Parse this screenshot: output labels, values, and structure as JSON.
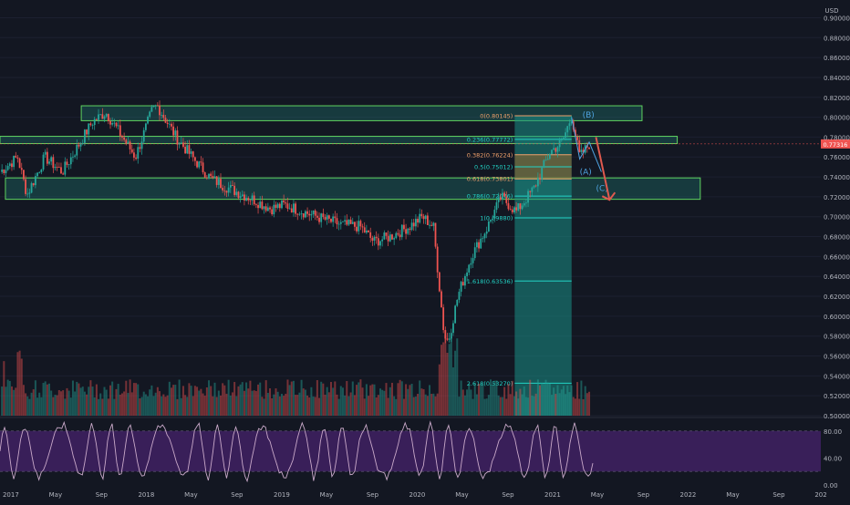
{
  "currency_label": "USD",
  "last_price_label": "0.77316",
  "colors": {
    "background": "#131722",
    "up": "#26a69a",
    "down": "#ef5350",
    "zone_fill": "#1f7a73",
    "zone_border": "#5fd35f",
    "fib_cyan": "#22d3c5",
    "fib_orange": "#f0a06a",
    "wave_label": "#4fa3e0",
    "arrow": "#e05a4f",
    "osc_fill": "#4a2470",
    "osc_line": "#c9a9c9",
    "axis_text": "#b2b5be"
  },
  "chart_data": {
    "type": "candlestick",
    "x_ticks": [
      "2017",
      "May",
      "Sep",
      "2018",
      "May",
      "Sep",
      "2019",
      "May",
      "Sep",
      "2020",
      "May",
      "Sep",
      "2021",
      "May",
      "Sep",
      "2022",
      "May",
      "Sep",
      "202"
    ],
    "price_ticks": [
      "0.90000",
      "0.88000",
      "0.86000",
      "0.84000",
      "0.82000",
      "0.80000",
      "0.78000",
      "0.76000",
      "0.74000",
      "0.72000",
      "0.70000",
      "0.68000",
      "0.66000",
      "0.64000",
      "0.62000",
      "0.60000",
      "0.58000",
      "0.56000",
      "0.54000",
      "0.52000",
      "0.50000"
    ],
    "price_range": [
      0.5,
      0.905
    ],
    "price_path": [
      {
        "date": "2016.92",
        "price": 0.745
      },
      {
        "date": "2017.05",
        "price": 0.76
      },
      {
        "date": "2017.12",
        "price": 0.722
      },
      {
        "date": "2017.25",
        "price": 0.76
      },
      {
        "date": "2017.38",
        "price": 0.745
      },
      {
        "date": "2017.47",
        "price": 0.765
      },
      {
        "date": "2017.60",
        "price": 0.795
      },
      {
        "date": "2017.70",
        "price": 0.805
      },
      {
        "date": "2017.80",
        "price": 0.785
      },
      {
        "date": "2017.92",
        "price": 0.76
      },
      {
        "date": "2018.04",
        "price": 0.806
      },
      {
        "date": "2018.08",
        "price": 0.812
      },
      {
        "date": "2018.22",
        "price": 0.78
      },
      {
        "date": "2018.35",
        "price": 0.758
      },
      {
        "date": "2018.48",
        "price": 0.738
      },
      {
        "date": "2018.62",
        "price": 0.728
      },
      {
        "date": "2018.78",
        "price": 0.718
      },
      {
        "date": "2018.92",
        "price": 0.708
      },
      {
        "date": "2019.02",
        "price": 0.712
      },
      {
        "date": "2019.16",
        "price": 0.705
      },
      {
        "date": "2019.30",
        "price": 0.698
      },
      {
        "date": "2019.44",
        "price": 0.692
      },
      {
        "date": "2019.58",
        "price": 0.69
      },
      {
        "date": "2019.68",
        "price": 0.675
      },
      {
        "date": "2019.80",
        "price": 0.68
      },
      {
        "date": "2019.94",
        "price": 0.69
      },
      {
        "date": "2020.04",
        "price": 0.7
      },
      {
        "date": "2020.12",
        "price": 0.69
      },
      {
        "date": "2020.20",
        "price": 0.58
      },
      {
        "date": "2020.23",
        "price": 0.575
      },
      {
        "date": "2020.30",
        "price": 0.62
      },
      {
        "date": "2020.40",
        "price": 0.66
      },
      {
        "date": "2020.52",
        "price": 0.69
      },
      {
        "date": "2020.62",
        "price": 0.72
      },
      {
        "date": "2020.73",
        "price": 0.705
      },
      {
        "date": "2020.86",
        "price": 0.728
      },
      {
        "date": "2020.98",
        "price": 0.765
      },
      {
        "date": "2021.07",
        "price": 0.775
      },
      {
        "date": "2021.14",
        "price": 0.801
      },
      {
        "date": "2021.20",
        "price": 0.76
      },
      {
        "date": "2021.27",
        "price": 0.773
      }
    ],
    "fib_levels": [
      {
        "label": "0(0.80145)",
        "price": 0.80145
      },
      {
        "label": "0.236(0.77772)",
        "price": 0.77772
      },
      {
        "label": "0.382(0.76224)",
        "price": 0.76224
      },
      {
        "label": "0.5(0.75012)",
        "price": 0.75012
      },
      {
        "label": "0.618(0.73801)",
        "price": 0.73801
      },
      {
        "label": "0.786(0.72076)",
        "price": 0.72076
      },
      {
        "label": "1(0.69880)",
        "price": 0.6988
      },
      {
        "label": "1.618(0.63536)",
        "price": 0.63536
      },
      {
        "label": "2.618(0.53270)",
        "price": 0.5327
      }
    ],
    "zones": [
      {
        "name": "upper-resistance-zone",
        "price_top": 0.8115,
        "price_bottom": 0.7965,
        "x_start": "2017.52",
        "x_end": "2021.66"
      },
      {
        "name": "middle-zone",
        "price_top": 0.7808,
        "price_bottom": 0.7735,
        "x_start": "2016.92",
        "x_end": "2021.92"
      },
      {
        "name": "lower-support-zone",
        "price_top": 0.739,
        "price_bottom": 0.7175,
        "x_start": "2016.96",
        "x_end": "2022.09"
      }
    ],
    "wave_labels": [
      "(B)",
      "(A)",
      "(C)"
    ],
    "oscillator": {
      "ticks": [
        "80.00",
        "40.00",
        "0.00"
      ],
      "range": [
        0,
        100
      ],
      "band": [
        20,
        80
      ]
    }
  }
}
